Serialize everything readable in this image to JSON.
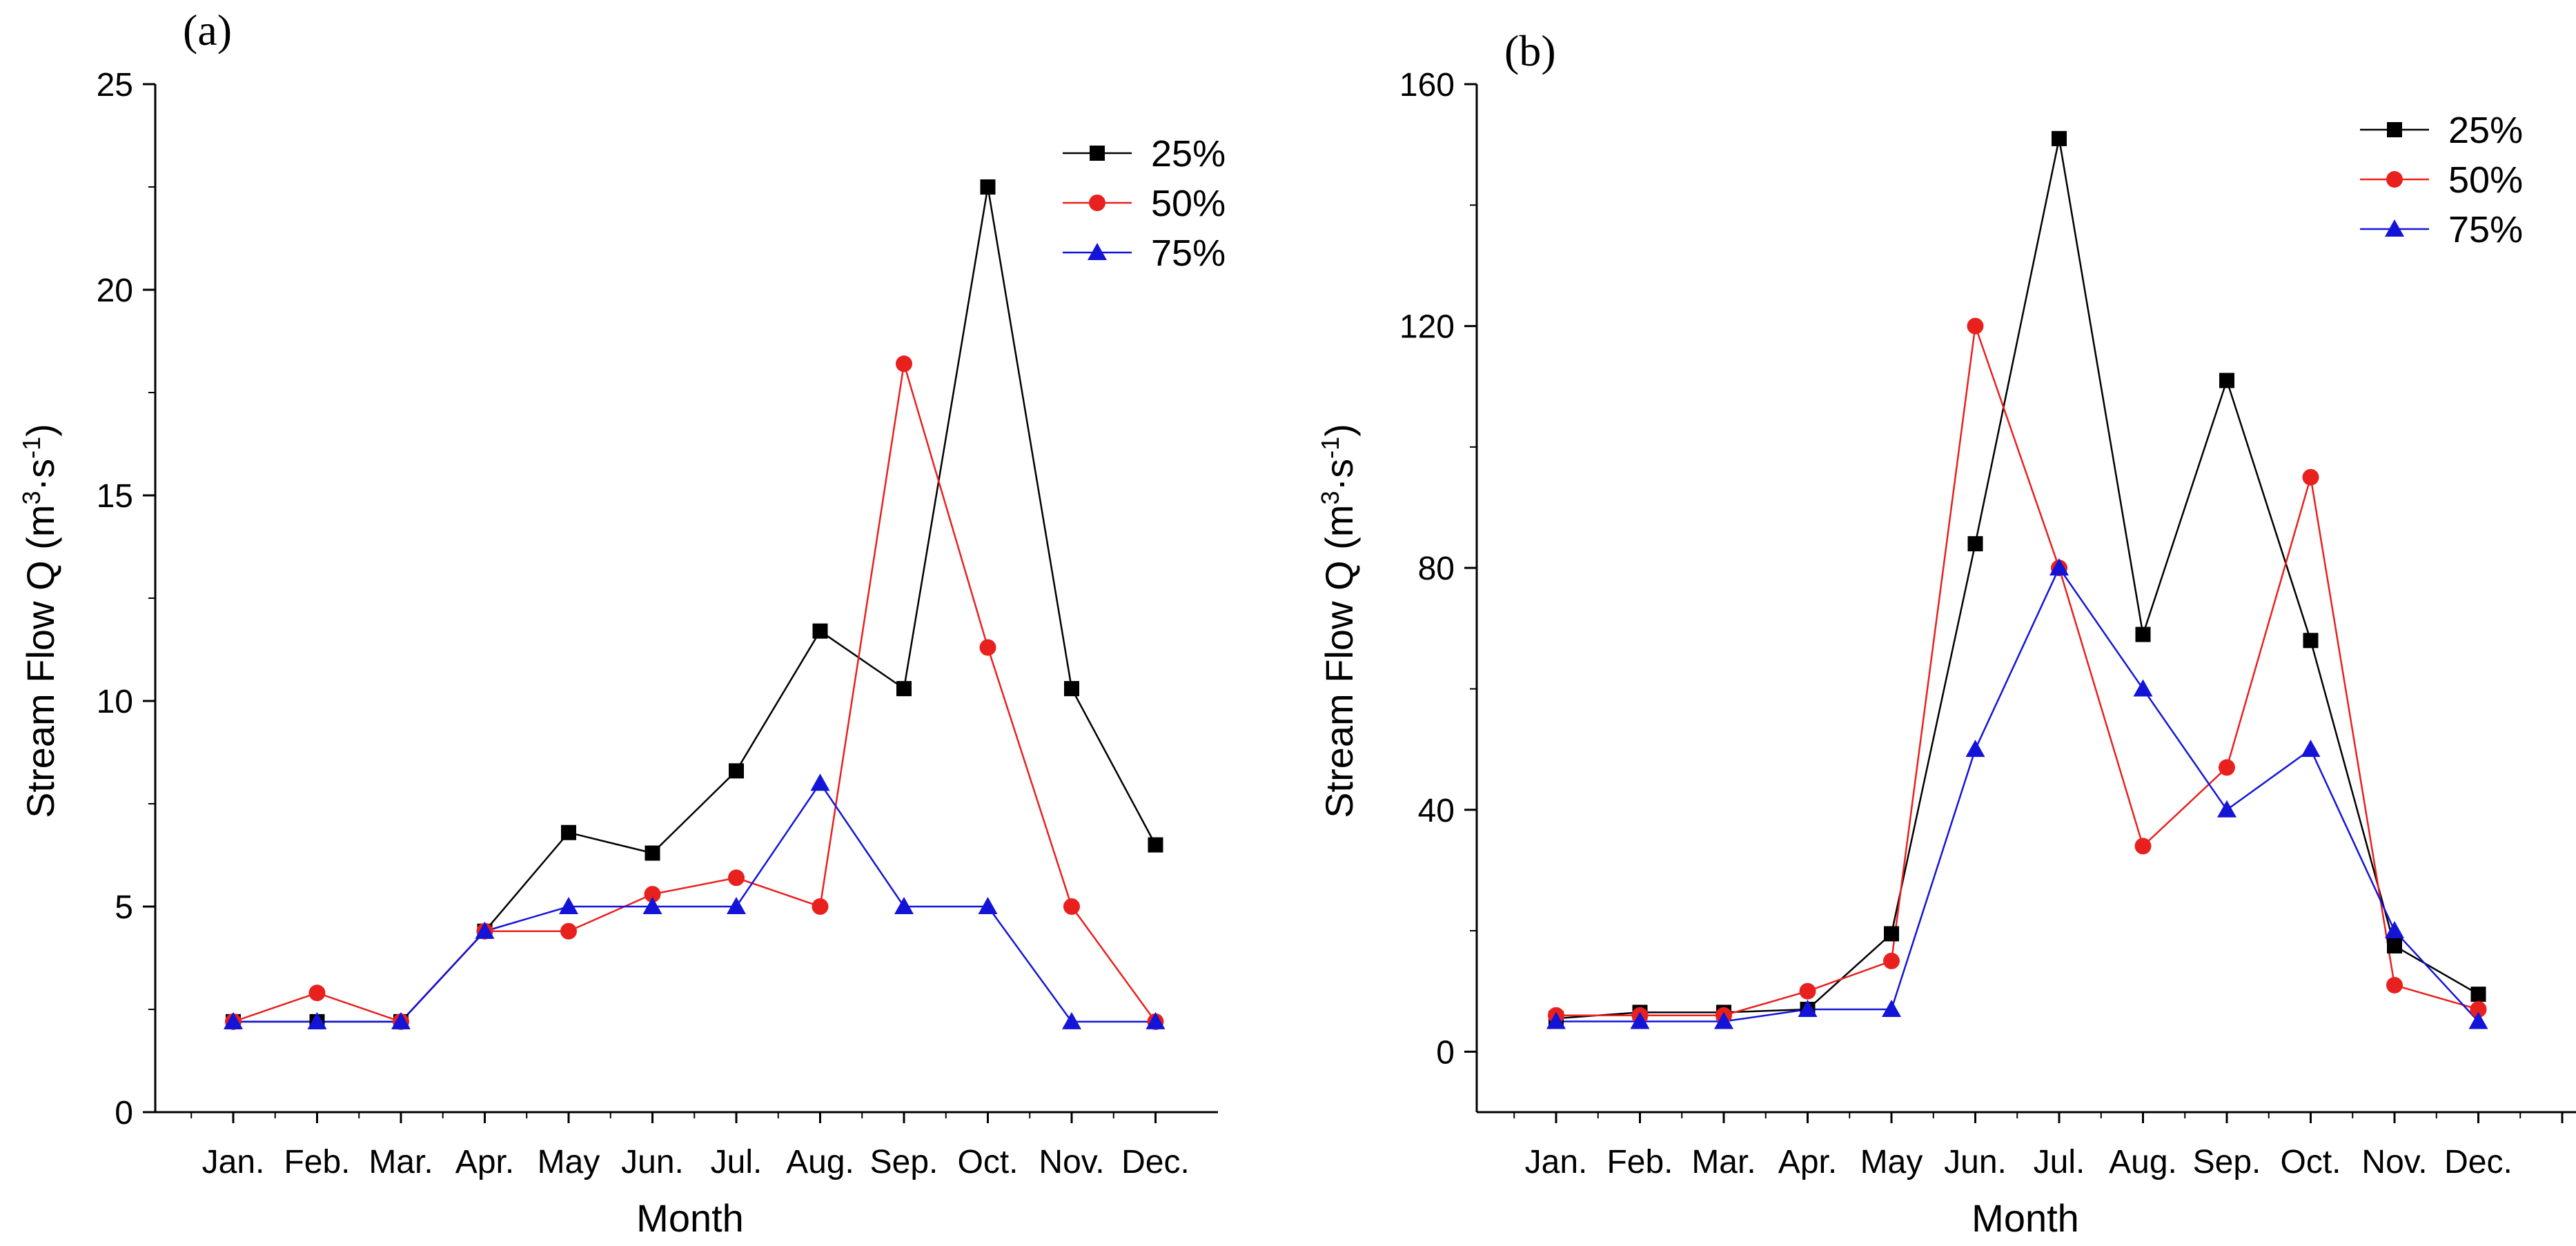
{
  "chart_data": [
    {
      "type": "line",
      "panel_label": "(a)",
      "categories": [
        "Jan.",
        "Feb.",
        "Mar.",
        "Apr.",
        "May",
        "Jun.",
        "Jul.",
        "Aug.",
        "Sep.",
        "Oct.",
        "Nov.",
        "Dec."
      ],
      "series": [
        {
          "name": "25%",
          "color": "#000000",
          "marker": "square",
          "values": [
            2.2,
            2.2,
            2.2,
            4.4,
            6.8,
            6.3,
            8.3,
            11.7,
            10.3,
            22.5,
            10.3,
            6.5
          ]
        },
        {
          "name": "50%",
          "color": "#e8201e",
          "marker": "circle",
          "values": [
            2.2,
            2.9,
            2.2,
            4.4,
            4.4,
            5.3,
            5.7,
            5.0,
            18.2,
            11.3,
            5.0,
            2.2
          ]
        },
        {
          "name": "75%",
          "color": "#1414d8",
          "marker": "triangle",
          "values": [
            2.2,
            2.2,
            2.2,
            4.4,
            5.0,
            5.0,
            5.0,
            8.0,
            5.0,
            5.0,
            2.2,
            2.2
          ]
        }
      ],
      "xlabel": "Month",
      "ylabel": "Stream Flow Q (m³·s⁻¹)",
      "ylim": [
        0,
        25
      ],
      "yticks": [
        0,
        5,
        10,
        15,
        20,
        25
      ],
      "grid": false,
      "legend": "top-right"
    },
    {
      "type": "line",
      "panel_label": "(b)",
      "categories": [
        "Jan.",
        "Feb.",
        "Mar.",
        "Apr.",
        "May",
        "Jun.",
        "Jul.",
        "Aug.",
        "Sep.",
        "Oct.",
        "Nov.",
        "Dec."
      ],
      "series": [
        {
          "name": "25%",
          "color": "#000000",
          "marker": "square",
          "values": [
            5.5,
            6.5,
            6.5,
            7,
            19.5,
            84,
            151,
            69,
            111,
            68,
            17.5,
            9.5
          ]
        },
        {
          "name": "50%",
          "color": "#e8201e",
          "marker": "circle",
          "values": [
            6,
            6,
            6,
            10,
            15,
            120,
            80,
            34,
            47,
            95,
            11,
            7
          ]
        },
        {
          "name": "75%",
          "color": "#1414d8",
          "marker": "triangle",
          "values": [
            5,
            5,
            5,
            7,
            7,
            50,
            80,
            60,
            40,
            50,
            20,
            5
          ]
        }
      ],
      "xlabel": "Month",
      "ylabel": "Stream Flow Q (m³·s⁻¹)",
      "ylim": [
        -10,
        160
      ],
      "yticks": [
        0,
        40,
        80,
        120,
        160
      ],
      "grid": false,
      "legend": "top-right"
    }
  ],
  "ylabel_parts": {
    "main": "Stream Flow Q (m",
    "sup1": "3",
    "mid": "·s",
    "sup2": "-1",
    "end": ")"
  }
}
